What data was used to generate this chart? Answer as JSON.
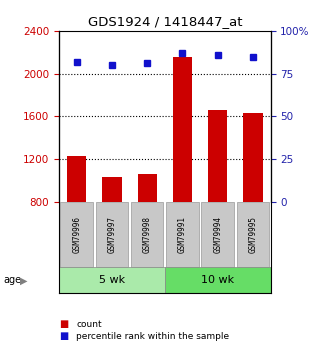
{
  "title": "GDS1924 / 1418447_at",
  "samples": [
    "GSM79996",
    "GSM79997",
    "GSM79998",
    "GSM79991",
    "GSM79994",
    "GSM79995"
  ],
  "counts": [
    1230,
    1030,
    1060,
    2160,
    1660,
    1630
  ],
  "percentiles": [
    82,
    80,
    81,
    87,
    86,
    85
  ],
  "ylim_left": [
    800,
    2400
  ],
  "ylim_right": [
    0,
    100
  ],
  "yticks_left": [
    800,
    1200,
    1600,
    2000,
    2400
  ],
  "yticks_right": [
    0,
    25,
    50,
    75,
    100
  ],
  "ytick_labels_right": [
    "0",
    "25",
    "50",
    "75",
    "100%"
  ],
  "groups": [
    {
      "label": "5 wk",
      "indices": [
        0,
        1,
        2
      ],
      "color": "#aaeaaa"
    },
    {
      "label": "10 wk",
      "indices": [
        3,
        4,
        5
      ],
      "color": "#66dd66"
    }
  ],
  "bar_color": "#CC0000",
  "dot_color": "#1111CC",
  "tick_color_left": "#CC0000",
  "tick_color_right": "#2222AA",
  "legend_count_label": "count",
  "legend_pct_label": "percentile rank within the sample",
  "bar_width": 0.55,
  "sample_box_color": "#C8C8C8",
  "sample_box_edge": "#999999"
}
